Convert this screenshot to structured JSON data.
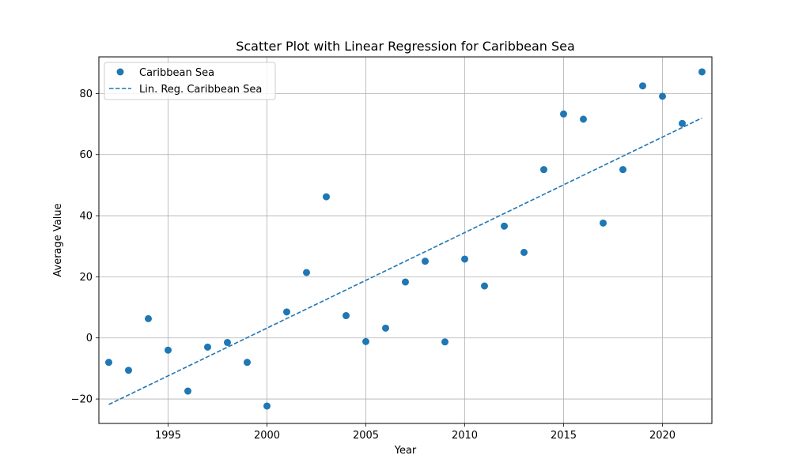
{
  "colors": {
    "series": "#1f77b4",
    "grid": "#b0b0b0",
    "axis": "#000000"
  },
  "chart_data": {
    "type": "scatter",
    "title": "Scatter Plot with Linear Regression for Caribbean Sea",
    "xlabel": "Year",
    "ylabel": "Average Value",
    "xlim": [
      1991.5,
      2022.5
    ],
    "ylim": [
      -28,
      92
    ],
    "xticks": [
      1995,
      2000,
      2005,
      2010,
      2015,
      2020
    ],
    "yticks": [
      -20,
      0,
      20,
      40,
      60,
      80
    ],
    "grid": true,
    "legend_position": "top-left",
    "series": [
      {
        "name": "Caribbean Sea",
        "kind": "scatter",
        "x": [
          1992,
          1993,
          1994,
          1995,
          1996,
          1997,
          1998,
          1999,
          2000,
          2001,
          2002,
          2003,
          2004,
          2005,
          2006,
          2007,
          2008,
          2009,
          2010,
          2011,
          2012,
          2013,
          2014,
          2015,
          2016,
          2017,
          2018,
          2019,
          2020,
          2021,
          2022
        ],
        "y": [
          -8,
          -10.6,
          6.3,
          -4,
          -17.4,
          -3,
          -1.5,
          -8,
          -22.3,
          8.5,
          21.4,
          46.2,
          7.3,
          -1.2,
          3.2,
          18.3,
          25.1,
          -1.3,
          25.8,
          17,
          36.6,
          28,
          55.1,
          73.3,
          71.6,
          37.6,
          55.1,
          82.5,
          79.1,
          70.2,
          87.1
        ]
      },
      {
        "name": "Lin. Reg. Caribbean Sea",
        "kind": "line",
        "style": "dashed",
        "x": [
          1992,
          2022
        ],
        "y": [
          -21.8,
          72
        ]
      }
    ]
  }
}
